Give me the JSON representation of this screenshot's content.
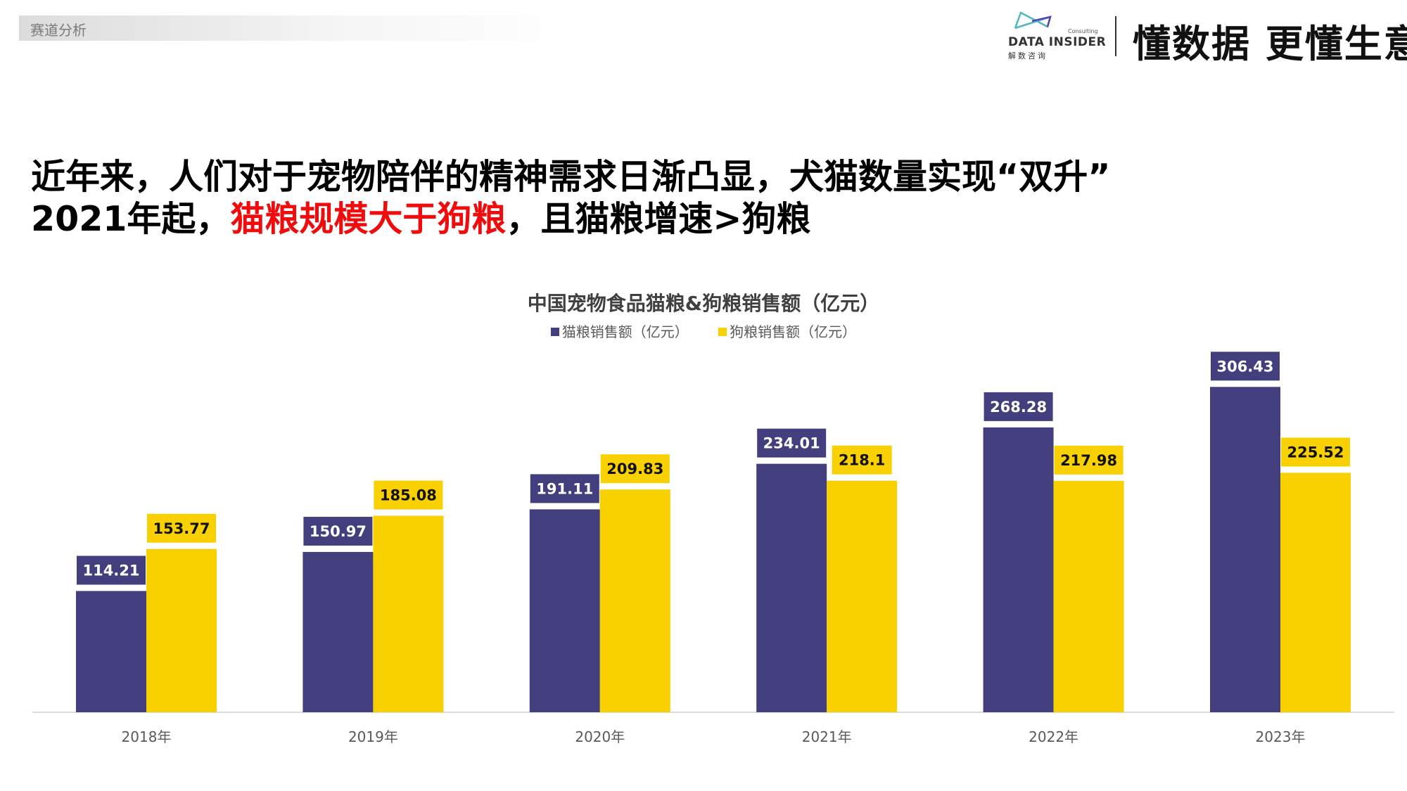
{
  "section_tag": "赛道分析",
  "logo": {
    "en": "DATA INSIDER",
    "cn": "解数咨询",
    "sub": "Consulting"
  },
  "slogan": "懂数据 更懂生意",
  "headline": {
    "line1": "近年来，人们对于宠物陪伴的精神需求日渐凸显，犬猫数量实现“双升”",
    "line2_a": "2021年起，",
    "line2_highlight": "猫粮规模大于狗粮",
    "line2_b": "，且猫粮增速>狗粮",
    "highlight_color": "#f00c0c"
  },
  "chart_data": {
    "type": "bar",
    "title": "中国宠物食品猫粮&狗粮销售额（亿元）",
    "categories": [
      "2018年",
      "2019年",
      "2020年",
      "2021年",
      "2022年",
      "2023年"
    ],
    "series": [
      {
        "name": "猫粮销售额（亿元）",
        "color": "#433f7f",
        "values": [
          114.21,
          150.97,
          191.11,
          234.01,
          268.28,
          306.43
        ],
        "labels": [
          "114.21",
          "150.97",
          "191.11",
          "234.01",
          "268.28",
          "306.43"
        ]
      },
      {
        "name": "狗粮销售额（亿元）",
        "color": "#f9d000",
        "values": [
          153.77,
          185.08,
          209.83,
          218.1,
          217.98,
          225.52
        ],
        "labels": [
          "153.77",
          "185.08",
          "209.83",
          "218.1",
          "217.98",
          "225.52"
        ]
      }
    ],
    "ylim": [
      0,
      320
    ],
    "grid": false,
    "legend": "top-center"
  }
}
